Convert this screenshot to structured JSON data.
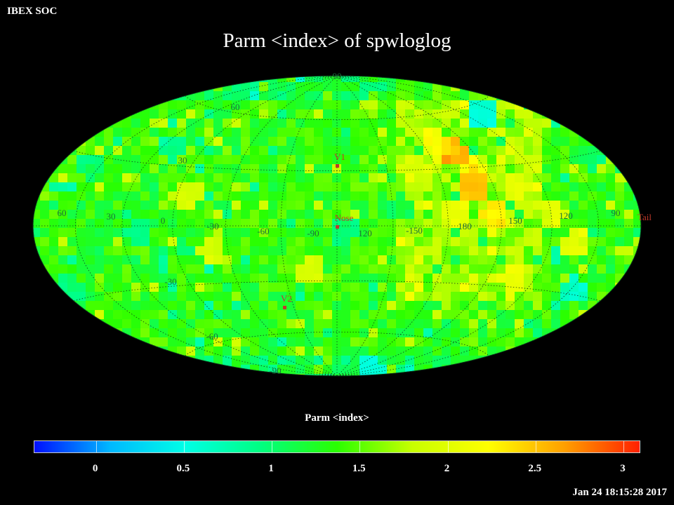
{
  "header": {
    "label": "IBEX SOC"
  },
  "map": {
    "title": "Parm  <index> of spwloglog",
    "projection": "Hammer-Aitoff",
    "lat_labels": [
      "90",
      "60",
      "30",
      "-30",
      "-60",
      "-90"
    ],
    "lon_labels": [
      "60",
      "30",
      "0",
      "-30",
      "-60",
      "-90",
      "120",
      "-150",
      "180",
      "150",
      "120",
      "90"
    ],
    "markers": {
      "v1": "V1",
      "nose": "Nose",
      "v2": "V2",
      "tail": "Tail"
    },
    "marker_color": "#c0392b",
    "grid_label_color": "#1a6e3c",
    "hotspot_color": "#ff2200"
  },
  "colorbar": {
    "title": "Parm  <index>",
    "min": -0.35,
    "max": 3.1,
    "tick_labels": [
      "0",
      "0.5",
      "1",
      "1.5",
      "2",
      "2.5",
      "3"
    ],
    "tick_values": [
      0,
      0.5,
      1,
      1.5,
      2,
      2.5,
      3
    ],
    "colors": [
      "#0010ff",
      "#00b8ff",
      "#00ffe6",
      "#00ff80",
      "#2aff00",
      "#c8ff00",
      "#ffff00",
      "#ffa000",
      "#ff2000"
    ]
  },
  "footer": {
    "timestamp": "Jan 24 18:15:28 2017"
  }
}
